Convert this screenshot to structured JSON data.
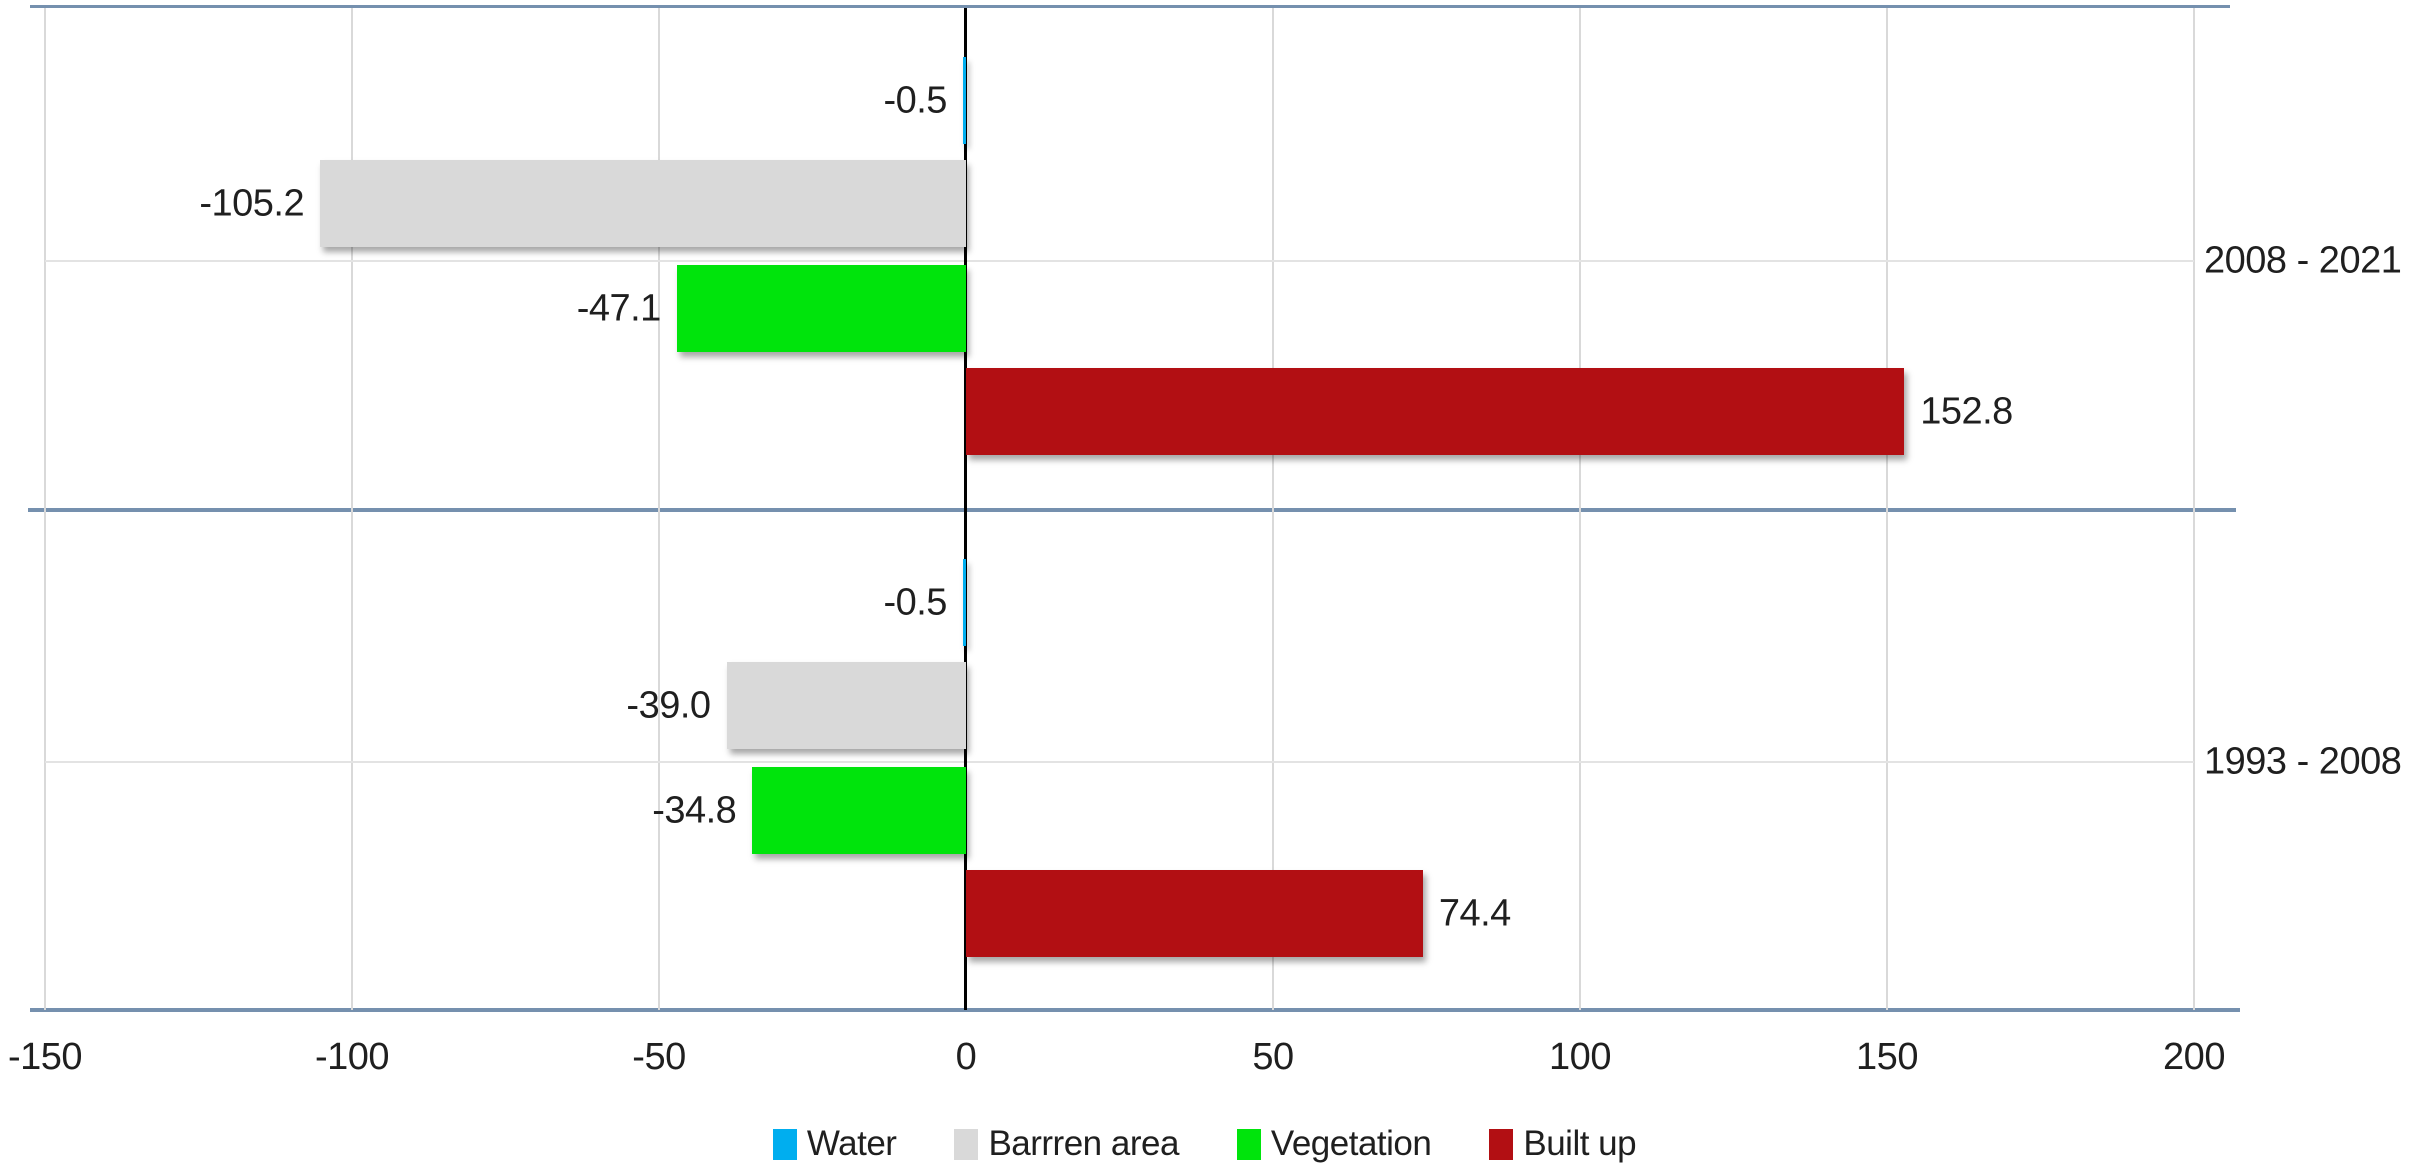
{
  "chart_data": {
    "type": "bar",
    "orientation": "horizontal",
    "title": "",
    "xlabel": "",
    "ylabel": "",
    "categories": [
      "2008 - 2021",
      "1993 - 2008"
    ],
    "series": [
      {
        "name": "Water",
        "color": "#00AEEF",
        "values": [
          -0.5,
          -0.5
        ]
      },
      {
        "name": "Barrren area",
        "color": "#D9D9D9",
        "values": [
          -105.2,
          -39.0
        ]
      },
      {
        "name": "Vegetation",
        "color": "#00E40C",
        "values": [
          -47.1,
          -34.8
        ]
      },
      {
        "name": "Built up",
        "color": "#B20F13",
        "values": [
          152.8,
          74.4
        ]
      }
    ],
    "data_labels": [
      [
        "-0.5",
        "-105.2",
        "-47.1",
        "152.8"
      ],
      [
        "-0.5",
        "-39.0",
        "-34.8",
        "74.4"
      ]
    ],
    "xlim": [
      -150,
      200
    ],
    "xticks": [
      -150,
      -100,
      -50,
      0,
      50,
      100,
      150,
      200
    ],
    "grid": true,
    "legend_position": "bottom"
  },
  "colors": {
    "axis_frame": "#7590AE",
    "gridline": "#D9D9D9",
    "zero_line": "#000000",
    "text": "#1F1F1F",
    "background": "#FFFFFF"
  }
}
